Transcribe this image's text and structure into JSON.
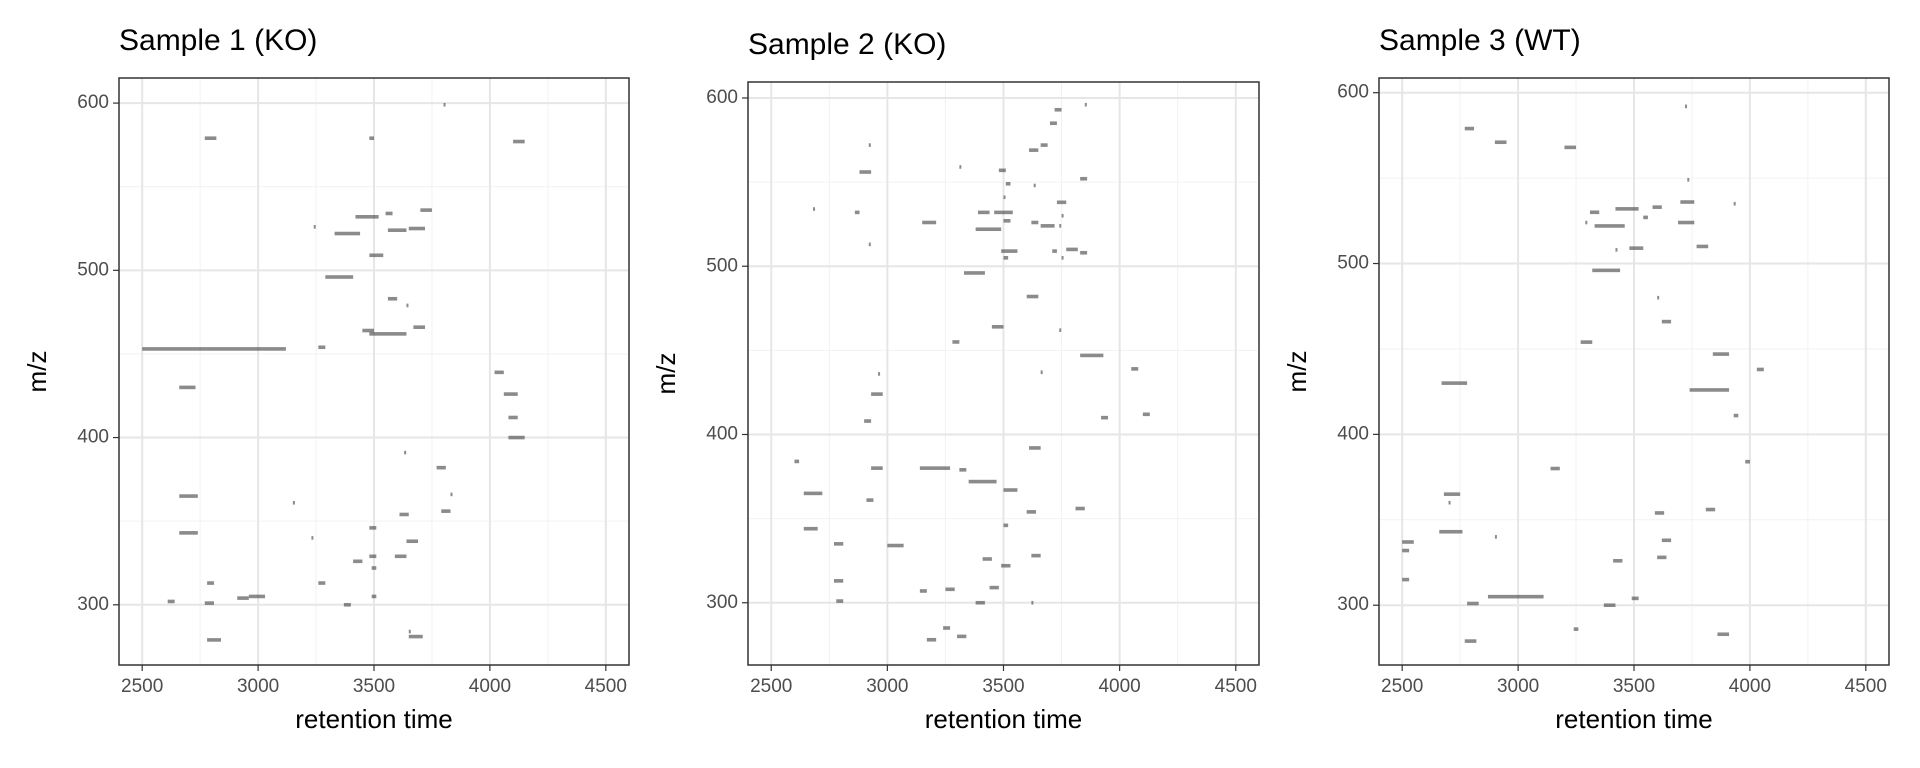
{
  "chart_data": [
    {
      "type": "segment",
      "title": "Sample 1 (KO)",
      "x_label": "retention time",
      "y_label": "m/z",
      "xlim": [
        2400,
        4600
      ],
      "ylim": [
        264,
        615
      ],
      "xticks": [
        2500,
        3000,
        3500,
        4000,
        4500
      ],
      "yticks": [
        300,
        400,
        500,
        600
      ],
      "minor_xticks": [
        2750,
        3250,
        3750,
        4250
      ],
      "minor_yticks": [
        350,
        450,
        550
      ],
      "grid": true,
      "color": "#4d4d4d",
      "segments": [
        {
          "x0": 2770,
          "x1": 2820,
          "y": 579
        },
        {
          "x0": 3480,
          "x1": 3500,
          "y": 579
        },
        {
          "x0": 3800,
          "x1": 3800,
          "y": 599
        },
        {
          "x0": 4100,
          "x1": 4150,
          "y": 577
        },
        {
          "x0": 3700,
          "x1": 3750,
          "y": 536
        },
        {
          "x0": 3420,
          "x1": 3520,
          "y": 532
        },
        {
          "x0": 3550,
          "x1": 3580,
          "y": 534
        },
        {
          "x0": 3330,
          "x1": 3440,
          "y": 522
        },
        {
          "x0": 3560,
          "x1": 3640,
          "y": 524
        },
        {
          "x0": 3650,
          "x1": 3720,
          "y": 525
        },
        {
          "x0": 3240,
          "x1": 3240,
          "y": 526
        },
        {
          "x0": 3480,
          "x1": 3540,
          "y": 509
        },
        {
          "x0": 3290,
          "x1": 3410,
          "y": 496
        },
        {
          "x0": 3560,
          "x1": 3600,
          "y": 483
        },
        {
          "x0": 3640,
          "x1": 3640,
          "y": 479
        },
        {
          "x0": 3450,
          "x1": 3500,
          "y": 464
        },
        {
          "x0": 3480,
          "x1": 3640,
          "y": 462
        },
        {
          "x0": 3670,
          "x1": 3720,
          "y": 466
        },
        {
          "x0": 2500,
          "x1": 3120,
          "y": 453
        },
        {
          "x0": 3260,
          "x1": 3290,
          "y": 454
        },
        {
          "x0": 4020,
          "x1": 4060,
          "y": 439
        },
        {
          "x0": 2660,
          "x1": 2730,
          "y": 430
        },
        {
          "x0": 4060,
          "x1": 4120,
          "y": 426
        },
        {
          "x0": 4080,
          "x1": 4120,
          "y": 412
        },
        {
          "x0": 4080,
          "x1": 4150,
          "y": 400
        },
        {
          "x0": 3630,
          "x1": 3630,
          "y": 391
        },
        {
          "x0": 3770,
          "x1": 3810,
          "y": 382
        },
        {
          "x0": 3830,
          "x1": 3830,
          "y": 366
        },
        {
          "x0": 2660,
          "x1": 2740,
          "y": 365
        },
        {
          "x0": 3150,
          "x1": 3150,
          "y": 361
        },
        {
          "x0": 3790,
          "x1": 3830,
          "y": 356
        },
        {
          "x0": 3610,
          "x1": 3650,
          "y": 354
        },
        {
          "x0": 2660,
          "x1": 2740,
          "y": 343
        },
        {
          "x0": 3480,
          "x1": 3510,
          "y": 346
        },
        {
          "x0": 3230,
          "x1": 3230,
          "y": 340
        },
        {
          "x0": 3640,
          "x1": 3690,
          "y": 338
        },
        {
          "x0": 3410,
          "x1": 3450,
          "y": 326
        },
        {
          "x0": 3590,
          "x1": 3640,
          "y": 329
        },
        {
          "x0": 3480,
          "x1": 3510,
          "y": 329
        },
        {
          "x0": 3490,
          "x1": 3510,
          "y": 322
        },
        {
          "x0": 3260,
          "x1": 3290,
          "y": 313
        },
        {
          "x0": 2780,
          "x1": 2810,
          "y": 313
        },
        {
          "x0": 3490,
          "x1": 3510,
          "y": 305
        },
        {
          "x0": 2610,
          "x1": 2640,
          "y": 302
        },
        {
          "x0": 2770,
          "x1": 2810,
          "y": 301
        },
        {
          "x0": 2910,
          "x1": 2960,
          "y": 304
        },
        {
          "x0": 2960,
          "x1": 3030,
          "y": 305
        },
        {
          "x0": 3370,
          "x1": 3400,
          "y": 300
        },
        {
          "x0": 2780,
          "x1": 2840,
          "y": 279
        },
        {
          "x0": 3650,
          "x1": 3710,
          "y": 281
        },
        {
          "x0": 3650,
          "x1": 3650,
          "y": 284
        }
      ]
    },
    {
      "type": "segment",
      "title": "Sample 2 (KO)",
      "x_label": "retention time",
      "y_label": "m/z",
      "xlim": [
        2400,
        4600
      ],
      "ylim": [
        263,
        609.5
      ],
      "xticks": [
        2500,
        3000,
        3500,
        4000,
        4500
      ],
      "yticks": [
        300,
        400,
        500,
        600
      ],
      "minor_xticks": [
        2750,
        3250,
        3750,
        4250
      ],
      "minor_yticks": [
        350,
        450,
        550
      ],
      "grid": true,
      "color": "#4d4d4d",
      "segments": [
        {
          "x0": 3850,
          "x1": 3850,
          "y": 596
        },
        {
          "x0": 3720,
          "x1": 3750,
          "y": 593
        },
        {
          "x0": 3700,
          "x1": 3730,
          "y": 585
        },
        {
          "x0": 3660,
          "x1": 3690,
          "y": 572
        },
        {
          "x0": 3610,
          "x1": 3650,
          "y": 569
        },
        {
          "x0": 2920,
          "x1": 2920,
          "y": 572
        },
        {
          "x0": 2880,
          "x1": 2930,
          "y": 556
        },
        {
          "x0": 3480,
          "x1": 3510,
          "y": 557
        },
        {
          "x0": 3310,
          "x1": 3310,
          "y": 559
        },
        {
          "x0": 3830,
          "x1": 3860,
          "y": 552
        },
        {
          "x0": 3510,
          "x1": 3530,
          "y": 549
        },
        {
          "x0": 3630,
          "x1": 3630,
          "y": 548
        },
        {
          "x0": 3500,
          "x1": 3500,
          "y": 541
        },
        {
          "x0": 3730,
          "x1": 3770,
          "y": 538
        },
        {
          "x0": 3390,
          "x1": 3440,
          "y": 532
        },
        {
          "x0": 3460,
          "x1": 3540,
          "y": 532
        },
        {
          "x0": 3750,
          "x1": 3750,
          "y": 530
        },
        {
          "x0": 2680,
          "x1": 2680,
          "y": 534
        },
        {
          "x0": 2860,
          "x1": 2880,
          "y": 532
        },
        {
          "x0": 3150,
          "x1": 3210,
          "y": 526
        },
        {
          "x0": 3500,
          "x1": 3530,
          "y": 527
        },
        {
          "x0": 3620,
          "x1": 3650,
          "y": 526
        },
        {
          "x0": 3660,
          "x1": 3720,
          "y": 524
        },
        {
          "x0": 3380,
          "x1": 3490,
          "y": 522
        },
        {
          "x0": 3740,
          "x1": 3740,
          "y": 524
        },
        {
          "x0": 2920,
          "x1": 2920,
          "y": 513
        },
        {
          "x0": 3490,
          "x1": 3560,
          "y": 509
        },
        {
          "x0": 3710,
          "x1": 3730,
          "y": 509
        },
        {
          "x0": 3770,
          "x1": 3820,
          "y": 510
        },
        {
          "x0": 3830,
          "x1": 3860,
          "y": 508
        },
        {
          "x0": 3500,
          "x1": 3520,
          "y": 505
        },
        {
          "x0": 3750,
          "x1": 3750,
          "y": 505
        },
        {
          "x0": 3330,
          "x1": 3420,
          "y": 496
        },
        {
          "x0": 3600,
          "x1": 3650,
          "y": 482
        },
        {
          "x0": 3450,
          "x1": 3500,
          "y": 464
        },
        {
          "x0": 3280,
          "x1": 3310,
          "y": 455
        },
        {
          "x0": 3740,
          "x1": 3740,
          "y": 462
        },
        {
          "x0": 3830,
          "x1": 3930,
          "y": 447
        },
        {
          "x0": 4050,
          "x1": 4080,
          "y": 439
        },
        {
          "x0": 3660,
          "x1": 3660,
          "y": 437
        },
        {
          "x0": 2960,
          "x1": 2960,
          "y": 436
        },
        {
          "x0": 2930,
          "x1": 2980,
          "y": 424
        },
        {
          "x0": 2900,
          "x1": 2930,
          "y": 408
        },
        {
          "x0": 3920,
          "x1": 3950,
          "y": 410
        },
        {
          "x0": 4100,
          "x1": 4130,
          "y": 412
        },
        {
          "x0": 3610,
          "x1": 3660,
          "y": 392
        },
        {
          "x0": 2600,
          "x1": 2620,
          "y": 384
        },
        {
          "x0": 2930,
          "x1": 2980,
          "y": 380
        },
        {
          "x0": 3140,
          "x1": 3270,
          "y": 380
        },
        {
          "x0": 3310,
          "x1": 3340,
          "y": 379
        },
        {
          "x0": 3350,
          "x1": 3470,
          "y": 372
        },
        {
          "x0": 2640,
          "x1": 2720,
          "y": 365
        },
        {
          "x0": 3500,
          "x1": 3560,
          "y": 367
        },
        {
          "x0": 2910,
          "x1": 2940,
          "y": 361
        },
        {
          "x0": 3810,
          "x1": 3850,
          "y": 356
        },
        {
          "x0": 3600,
          "x1": 3640,
          "y": 354
        },
        {
          "x0": 2640,
          "x1": 2700,
          "y": 344
        },
        {
          "x0": 3500,
          "x1": 3520,
          "y": 346
        },
        {
          "x0": 2770,
          "x1": 2810,
          "y": 335
        },
        {
          "x0": 3000,
          "x1": 3070,
          "y": 334
        },
        {
          "x0": 3620,
          "x1": 3660,
          "y": 328
        },
        {
          "x0": 3410,
          "x1": 3450,
          "y": 326
        },
        {
          "x0": 3490,
          "x1": 3530,
          "y": 322
        },
        {
          "x0": 2770,
          "x1": 2810,
          "y": 313
        },
        {
          "x0": 3140,
          "x1": 3170,
          "y": 307
        },
        {
          "x0": 3250,
          "x1": 3290,
          "y": 308
        },
        {
          "x0": 3440,
          "x1": 3480,
          "y": 309
        },
        {
          "x0": 2780,
          "x1": 2810,
          "y": 301
        },
        {
          "x0": 3380,
          "x1": 3420,
          "y": 300
        },
        {
          "x0": 3620,
          "x1": 3620,
          "y": 300
        },
        {
          "x0": 3170,
          "x1": 3210,
          "y": 278
        },
        {
          "x0": 3240,
          "x1": 3270,
          "y": 285
        },
        {
          "x0": 3300,
          "x1": 3340,
          "y": 280
        }
      ]
    },
    {
      "type": "segment",
      "title": "Sample 3 (WT)",
      "x_label": "retention time",
      "y_label": "m/z",
      "xlim": [
        2400,
        4600
      ],
      "ylim": [
        265,
        608.6
      ],
      "xticks": [
        2500,
        3000,
        3500,
        4000,
        4500
      ],
      "yticks": [
        300,
        400,
        500,
        600
      ],
      "minor_xticks": [
        2750,
        3250,
        3750,
        4250
      ],
      "minor_yticks": [
        350,
        450,
        550
      ],
      "grid": true,
      "color": "#4d4d4d",
      "segments": [
        {
          "x0": 2770,
          "x1": 2810,
          "y": 579
        },
        {
          "x0": 3720,
          "x1": 3720,
          "y": 592
        },
        {
          "x0": 2900,
          "x1": 2950,
          "y": 571
        },
        {
          "x0": 3200,
          "x1": 3250,
          "y": 568
        },
        {
          "x0": 3730,
          "x1": 3730,
          "y": 549
        },
        {
          "x0": 3930,
          "x1": 3930,
          "y": 535
        },
        {
          "x0": 3700,
          "x1": 3760,
          "y": 536
        },
        {
          "x0": 3580,
          "x1": 3620,
          "y": 533
        },
        {
          "x0": 3420,
          "x1": 3520,
          "y": 532
        },
        {
          "x0": 3310,
          "x1": 3350,
          "y": 530
        },
        {
          "x0": 3540,
          "x1": 3560,
          "y": 527
        },
        {
          "x0": 3290,
          "x1": 3290,
          "y": 524
        },
        {
          "x0": 3330,
          "x1": 3460,
          "y": 522
        },
        {
          "x0": 3690,
          "x1": 3760,
          "y": 524
        },
        {
          "x0": 3770,
          "x1": 3820,
          "y": 510
        },
        {
          "x0": 3480,
          "x1": 3540,
          "y": 509
        },
        {
          "x0": 3420,
          "x1": 3420,
          "y": 508
        },
        {
          "x0": 3320,
          "x1": 3440,
          "y": 496
        },
        {
          "x0": 3600,
          "x1": 3600,
          "y": 480
        },
        {
          "x0": 3620,
          "x1": 3660,
          "y": 466
        },
        {
          "x0": 3270,
          "x1": 3320,
          "y": 454
        },
        {
          "x0": 3840,
          "x1": 3910,
          "y": 447
        },
        {
          "x0": 4030,
          "x1": 4060,
          "y": 438
        },
        {
          "x0": 2670,
          "x1": 2780,
          "y": 430
        },
        {
          "x0": 3740,
          "x1": 3910,
          "y": 426
        },
        {
          "x0": 3930,
          "x1": 3950,
          "y": 411
        },
        {
          "x0": 3140,
          "x1": 3180,
          "y": 380
        },
        {
          "x0": 3980,
          "x1": 4000,
          "y": 384
        },
        {
          "x0": 2680,
          "x1": 2750,
          "y": 365
        },
        {
          "x0": 2700,
          "x1": 2700,
          "y": 360
        },
        {
          "x0": 3590,
          "x1": 3630,
          "y": 354
        },
        {
          "x0": 3810,
          "x1": 3850,
          "y": 356
        },
        {
          "x0": 2660,
          "x1": 2760,
          "y": 343
        },
        {
          "x0": 2900,
          "x1": 2900,
          "y": 340
        },
        {
          "x0": 2500,
          "x1": 2550,
          "y": 337
        },
        {
          "x0": 3620,
          "x1": 3660,
          "y": 338
        },
        {
          "x0": 2500,
          "x1": 2530,
          "y": 332
        },
        {
          "x0": 3600,
          "x1": 3640,
          "y": 328
        },
        {
          "x0": 3410,
          "x1": 3450,
          "y": 326
        },
        {
          "x0": 2500,
          "x1": 2530,
          "y": 315
        },
        {
          "x0": 2780,
          "x1": 2830,
          "y": 301
        },
        {
          "x0": 2870,
          "x1": 3110,
          "y": 305
        },
        {
          "x0": 3490,
          "x1": 3520,
          "y": 304
        },
        {
          "x0": 3370,
          "x1": 3420,
          "y": 300
        },
        {
          "x0": 3240,
          "x1": 3260,
          "y": 286
        },
        {
          "x0": 3860,
          "x1": 3910,
          "y": 283
        },
        {
          "x0": 2770,
          "x1": 2820,
          "y": 279
        }
      ]
    }
  ]
}
